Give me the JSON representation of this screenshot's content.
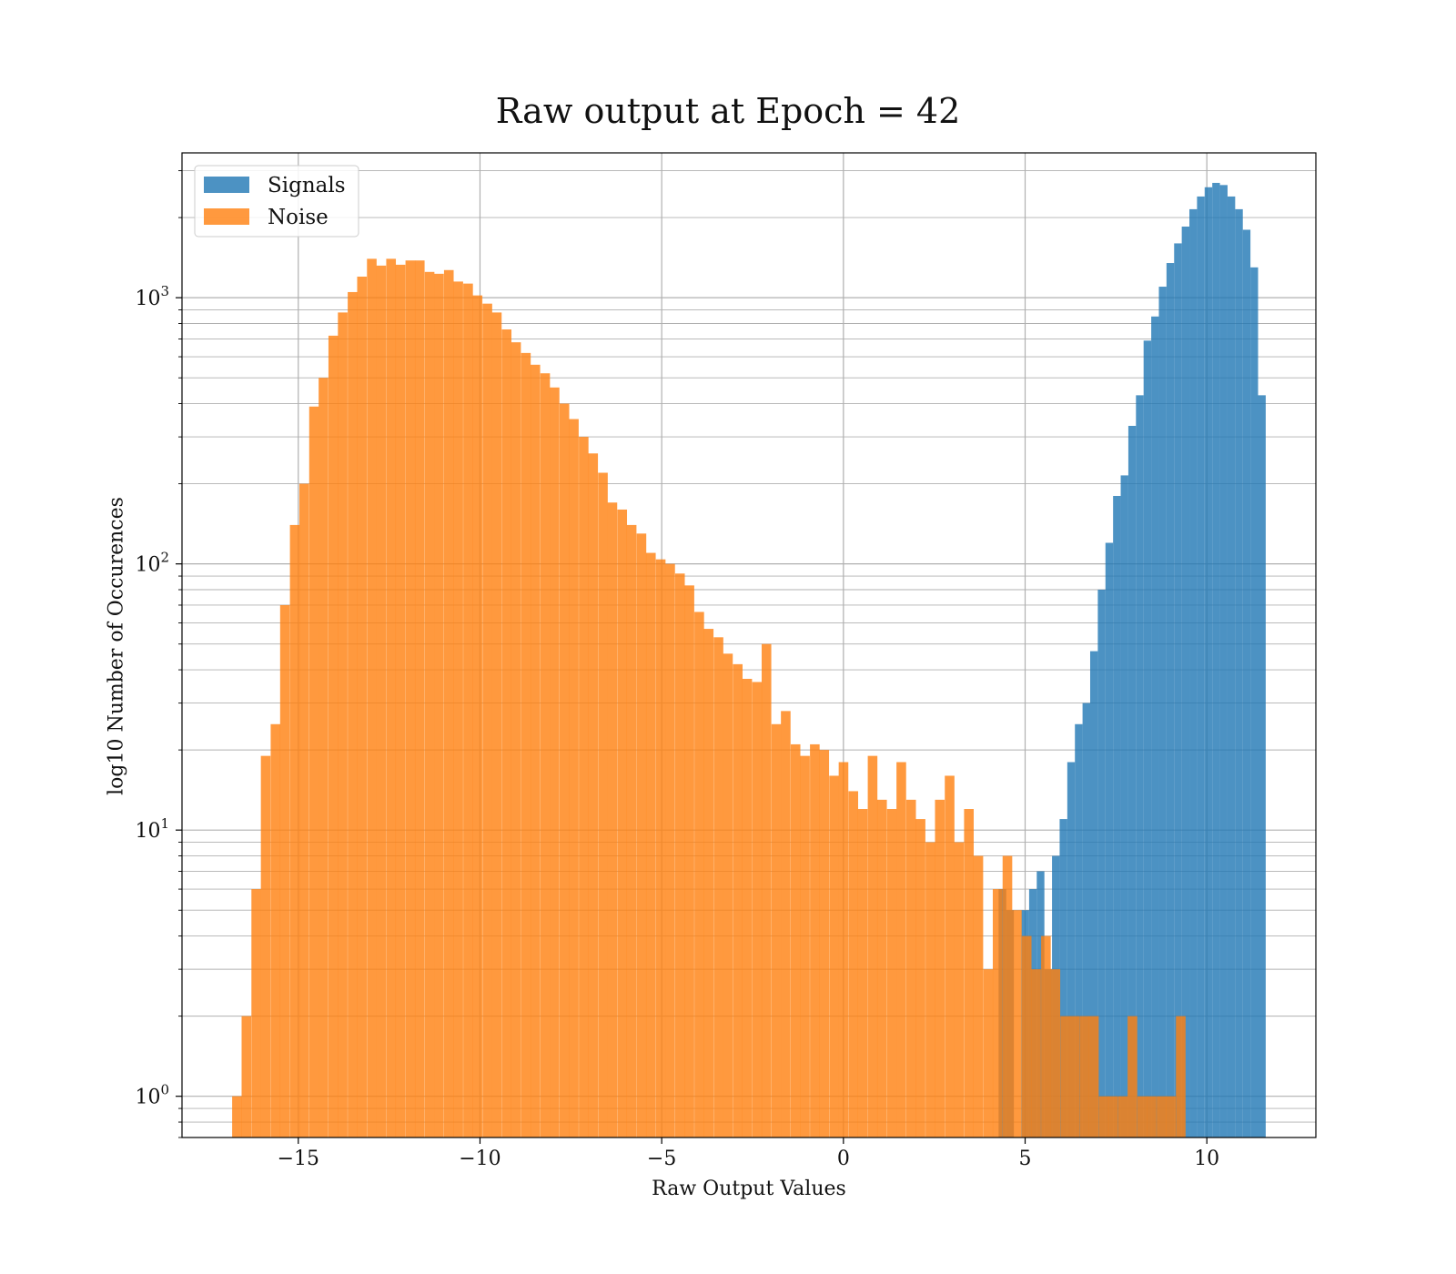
{
  "chart_data": {
    "type": "bar",
    "subtype": "histogram",
    "title": "Raw output at Epoch = 42",
    "xlabel": "Raw Output Values",
    "ylabel": "log10 Number of Occurences",
    "xlim": [
      -18.2,
      13.0
    ],
    "ylim": [
      0.7,
      3500
    ],
    "yscale": "log",
    "grid": true,
    "legend_placement": "top-left",
    "x_ticks": [
      {
        "value": -15,
        "label": "−15"
      },
      {
        "value": -10,
        "label": "−10"
      },
      {
        "value": -5,
        "label": "−5"
      },
      {
        "value": 0,
        "label": "0"
      },
      {
        "value": 5,
        "label": "5"
      },
      {
        "value": 10,
        "label": "10"
      }
    ],
    "y_ticks": [
      {
        "value": 1,
        "base": "10",
        "exp": "0"
      },
      {
        "value": 10,
        "base": "10",
        "exp": "1"
      },
      {
        "value": 100,
        "base": "10",
        "exp": "2"
      },
      {
        "value": 1000,
        "base": "10",
        "exp": "3"
      }
    ],
    "series": [
      {
        "name": "Signals",
        "color": "#1f77b4",
        "bin_width": 0.21,
        "bars": [
          [
            4.27,
            6
          ],
          [
            4.48,
            5
          ],
          [
            4.9,
            5
          ],
          [
            5.11,
            6
          ],
          [
            5.32,
            7
          ],
          [
            5.53,
            3
          ],
          [
            5.74,
            8
          ],
          [
            5.95,
            11
          ],
          [
            6.16,
            18
          ],
          [
            6.37,
            25
          ],
          [
            6.58,
            30
          ],
          [
            6.79,
            47
          ],
          [
            7.0,
            80
          ],
          [
            7.21,
            120
          ],
          [
            7.42,
            180
          ],
          [
            7.63,
            215
          ],
          [
            7.84,
            330
          ],
          [
            8.05,
            430
          ],
          [
            8.26,
            690
          ],
          [
            8.47,
            850
          ],
          [
            8.68,
            1100
          ],
          [
            8.89,
            1350
          ],
          [
            9.1,
            1600
          ],
          [
            9.31,
            1850
          ],
          [
            9.52,
            2150
          ],
          [
            9.73,
            2400
          ],
          [
            9.94,
            2600
          ],
          [
            10.15,
            2700
          ],
          [
            10.36,
            2650
          ],
          [
            10.57,
            2400
          ],
          [
            10.78,
            2150
          ],
          [
            10.99,
            1800
          ],
          [
            11.2,
            1300
          ],
          [
            11.41,
            430
          ]
        ]
      },
      {
        "name": "Noise",
        "color": "#ff7f0e",
        "bin_width": 0.265,
        "bars": [
          [
            -16.82,
            1
          ],
          [
            -16.56,
            2
          ],
          [
            -16.29,
            6
          ],
          [
            -16.03,
            19
          ],
          [
            -15.76,
            25
          ],
          [
            -15.5,
            70
          ],
          [
            -15.23,
            140
          ],
          [
            -14.97,
            200
          ],
          [
            -14.7,
            390
          ],
          [
            -14.44,
            500
          ],
          [
            -14.17,
            720
          ],
          [
            -13.91,
            880
          ],
          [
            -13.64,
            1050
          ],
          [
            -13.38,
            1200
          ],
          [
            -13.11,
            1400
          ],
          [
            -12.85,
            1320
          ],
          [
            -12.58,
            1400
          ],
          [
            -12.32,
            1330
          ],
          [
            -12.05,
            1380
          ],
          [
            -11.79,
            1380
          ],
          [
            -11.52,
            1250
          ],
          [
            -11.26,
            1230
          ],
          [
            -10.99,
            1270
          ],
          [
            -10.73,
            1150
          ],
          [
            -10.46,
            1130
          ],
          [
            -10.2,
            1020
          ],
          [
            -9.93,
            950
          ],
          [
            -9.67,
            880
          ],
          [
            -9.4,
            760
          ],
          [
            -9.14,
            680
          ],
          [
            -8.87,
            620
          ],
          [
            -8.61,
            560
          ],
          [
            -8.34,
            520
          ],
          [
            -8.08,
            460
          ],
          [
            -7.81,
            400
          ],
          [
            -7.55,
            350
          ],
          [
            -7.28,
            300
          ],
          [
            -7.02,
            260
          ],
          [
            -6.75,
            220
          ],
          [
            -6.49,
            170
          ],
          [
            -6.22,
            160
          ],
          [
            -5.96,
            140
          ],
          [
            -5.69,
            130
          ],
          [
            -5.43,
            110
          ],
          [
            -5.16,
            104
          ],
          [
            -4.9,
            100
          ],
          [
            -4.63,
            92
          ],
          [
            -4.37,
            83
          ],
          [
            -4.1,
            66
          ],
          [
            -3.84,
            57
          ],
          [
            -3.57,
            53
          ],
          [
            -3.31,
            46
          ],
          [
            -3.04,
            42
          ],
          [
            -2.78,
            37
          ],
          [
            -2.51,
            36
          ],
          [
            -2.25,
            50
          ],
          [
            -1.98,
            25
          ],
          [
            -1.72,
            28
          ],
          [
            -1.45,
            21
          ],
          [
            -1.19,
            19
          ],
          [
            -0.92,
            21
          ],
          [
            -0.66,
            20
          ],
          [
            -0.39,
            16
          ],
          [
            -0.13,
            18
          ],
          [
            0.14,
            14
          ],
          [
            0.4,
            12
          ],
          [
            0.67,
            19
          ],
          [
            0.93,
            13
          ],
          [
            1.2,
            12
          ],
          [
            1.46,
            18
          ],
          [
            1.73,
            13
          ],
          [
            1.99,
            11
          ],
          [
            2.26,
            9
          ],
          [
            2.52,
            13
          ],
          [
            2.79,
            16
          ],
          [
            3.05,
            9
          ],
          [
            3.32,
            12
          ],
          [
            3.58,
            8
          ],
          [
            3.85,
            3
          ],
          [
            4.11,
            6
          ],
          [
            4.38,
            8
          ],
          [
            4.64,
            5
          ],
          [
            4.91,
            4
          ],
          [
            5.17,
            3
          ],
          [
            5.44,
            4
          ],
          [
            5.7,
            3
          ],
          [
            5.97,
            2
          ],
          [
            6.23,
            2
          ],
          [
            6.5,
            2
          ],
          [
            6.76,
            2
          ],
          [
            7.03,
            1
          ],
          [
            7.29,
            1
          ],
          [
            7.56,
            1
          ],
          [
            7.82,
            2
          ],
          [
            8.09,
            1
          ],
          [
            8.35,
            1
          ],
          [
            8.62,
            1
          ],
          [
            8.88,
            1
          ],
          [
            9.15,
            2
          ]
        ]
      }
    ]
  }
}
